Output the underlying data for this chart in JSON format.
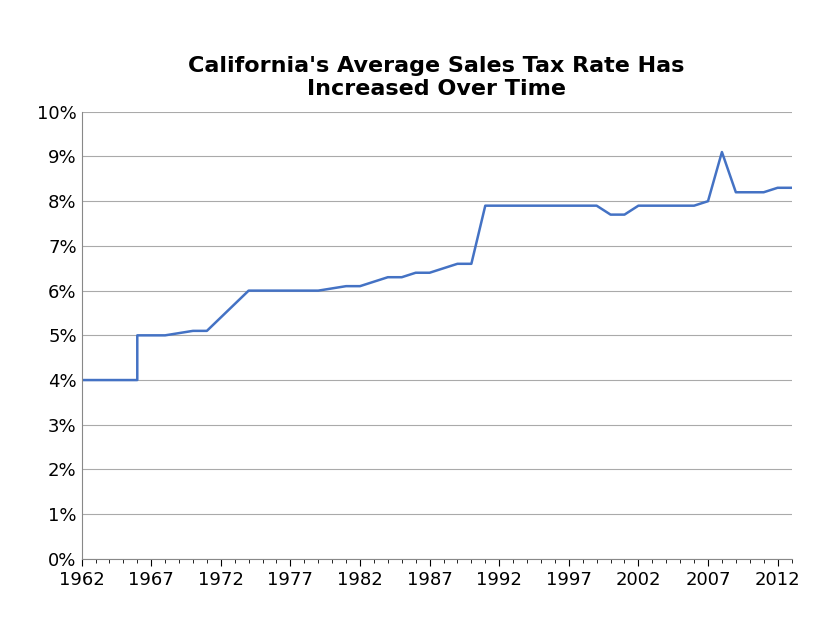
{
  "title": "California's Average Sales Tax Rate Has\nIncreased Over Time",
  "detailed_points": [
    [
      1962,
      0.04
    ],
    [
      1966,
      0.04
    ],
    [
      1966,
      0.05
    ],
    [
      1968,
      0.05
    ],
    [
      1970,
      0.051
    ],
    [
      1971,
      0.051
    ],
    [
      1974,
      0.06
    ],
    [
      1979,
      0.06
    ],
    [
      1981,
      0.061
    ],
    [
      1982,
      0.061
    ],
    [
      1983,
      0.062
    ],
    [
      1984,
      0.063
    ],
    [
      1985,
      0.063
    ],
    [
      1986,
      0.064
    ],
    [
      1987,
      0.064
    ],
    [
      1988,
      0.065
    ],
    [
      1989,
      0.066
    ],
    [
      1990,
      0.066
    ],
    [
      1991,
      0.079
    ],
    [
      1992,
      0.079
    ],
    [
      1993,
      0.079
    ],
    [
      1994,
      0.079
    ],
    [
      1995,
      0.079
    ],
    [
      1996,
      0.079
    ],
    [
      1997,
      0.079
    ],
    [
      1998,
      0.079
    ],
    [
      1999,
      0.079
    ],
    [
      2000,
      0.077
    ],
    [
      2001,
      0.077
    ],
    [
      2002,
      0.079
    ],
    [
      2003,
      0.079
    ],
    [
      2004,
      0.079
    ],
    [
      2005,
      0.079
    ],
    [
      2006,
      0.079
    ],
    [
      2007,
      0.08
    ],
    [
      2008,
      0.091
    ],
    [
      2009,
      0.082
    ],
    [
      2010,
      0.082
    ],
    [
      2011,
      0.082
    ],
    [
      2012,
      0.083
    ],
    [
      2013,
      0.083
    ]
  ],
  "xlim": [
    1962,
    2013
  ],
  "ylim": [
    0.0,
    0.1
  ],
  "xticks": [
    1962,
    1967,
    1972,
    1977,
    1982,
    1987,
    1992,
    1997,
    2002,
    2007,
    2012
  ],
  "yticks": [
    0.0,
    0.01,
    0.02,
    0.03,
    0.04,
    0.05,
    0.06,
    0.07,
    0.08,
    0.09,
    0.1
  ],
  "line_color": "#4472C4",
  "line_width": 1.8,
  "background_color": "#FFFFFF",
  "grid_color": "#AAAAAA",
  "spine_color": "#888888",
  "title_fontsize": 16,
  "tick_fontsize": 13
}
